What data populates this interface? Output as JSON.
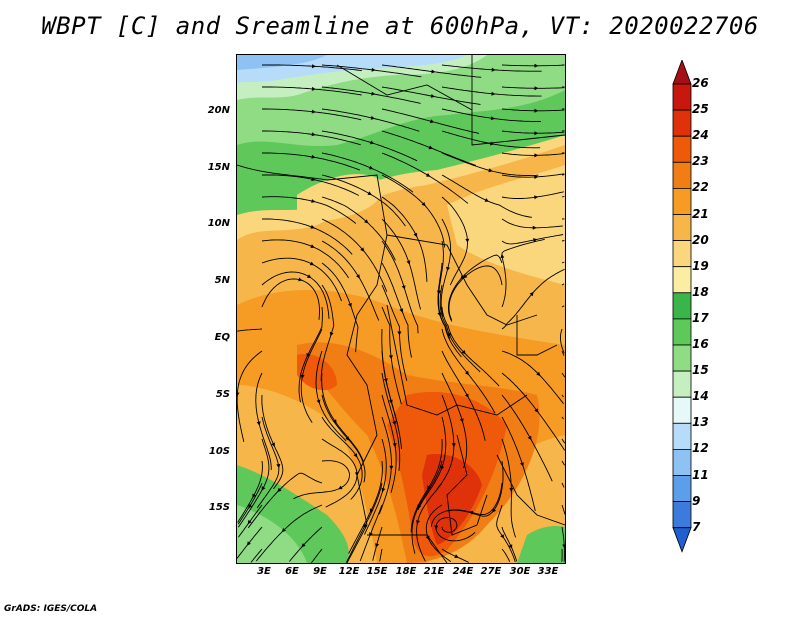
{
  "title": "WBPT [C] and Sreamline at 600hPa, VT: 2020022706",
  "credit": "GrADS: IGES/COLA",
  "map": {
    "lat_labels": [
      "20N",
      "15N",
      "10N",
      "5N",
      "EQ",
      "5S",
      "10S",
      "15S"
    ],
    "lon_labels": [
      "3E",
      "6E",
      "9E",
      "12E",
      "15E",
      "18E",
      "21E",
      "24E",
      "27E",
      "30E",
      "33E"
    ]
  },
  "colorbar": {
    "levels": [
      "26",
      "25",
      "24",
      "23",
      "22",
      "21",
      "20",
      "19",
      "18",
      "17",
      "16",
      "15",
      "14",
      "13",
      "12",
      "11",
      "9",
      "7"
    ],
    "colors": [
      "#a50f15",
      "#c8170f",
      "#e0320a",
      "#ee5a0a",
      "#f07e14",
      "#f69b24",
      "#f7b64a",
      "#fad77c",
      "#fbeea4",
      "#3ab54a",
      "#5fc85a",
      "#8fdc85",
      "#c5efc0",
      "#e6f8f8",
      "#b6dcfa",
      "#8ec2f3",
      "#5c9eea",
      "#3a7bdc",
      "#1f5fcf"
    ]
  }
}
